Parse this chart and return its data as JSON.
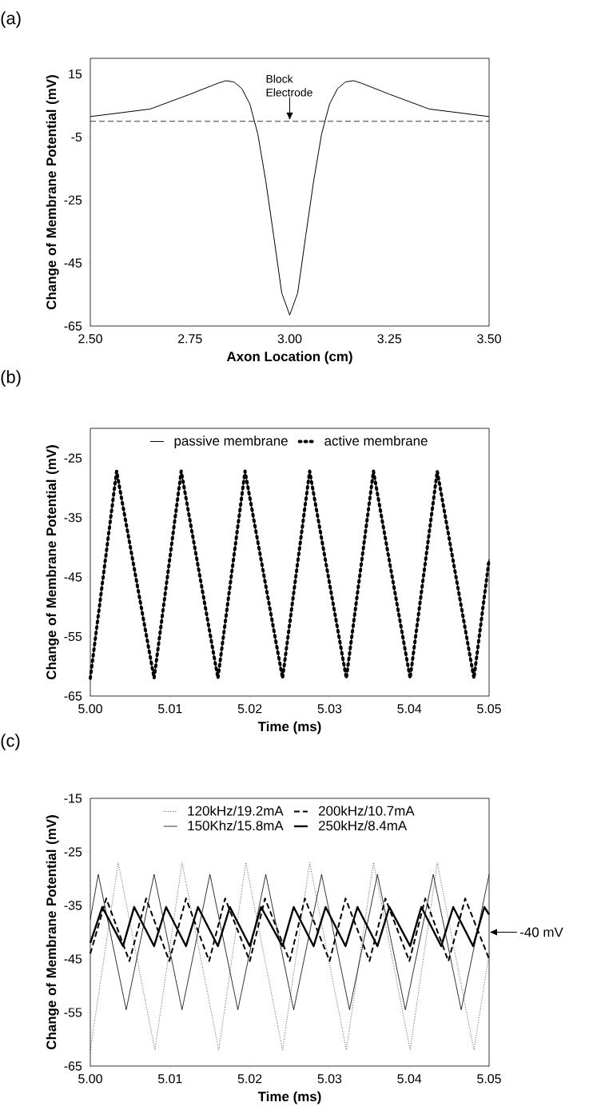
{
  "chart_data": [
    {
      "type": "line",
      "title": "(a)",
      "xlabel": "Axon Location (cm)",
      "ylabel": "Change of Membrane Potential (mV)",
      "xlim": [
        2.5,
        3.5
      ],
      "ylim": [
        -65,
        20
      ],
      "xticks": [
        {
          "value": 2.5,
          "label": "2.50"
        },
        {
          "value": 2.75,
          "label": "2.75"
        },
        {
          "value": 3.0,
          "label": "3.00"
        },
        {
          "value": 3.25,
          "label": "3.25"
        },
        {
          "value": 3.5,
          "label": "3.50"
        }
      ],
      "yticks": [
        -65,
        -45,
        -25,
        -5,
        15
      ],
      "series": [
        {
          "color": "#000000",
          "line_style": "solid",
          "x": [
            2.5,
            2.65,
            2.75,
            2.82,
            2.84,
            2.86,
            2.88,
            2.9,
            2.92,
            2.94,
            2.96,
            2.98,
            3.0,
            3.02,
            3.04,
            3.06,
            3.08,
            3.1,
            3.12,
            3.14,
            3.16,
            3.18,
            3.25,
            3.35,
            3.5
          ],
          "values": [
            1.5,
            3.9,
            8.6,
            12.1,
            12.9,
            12.5,
            10.4,
            5.5,
            -4,
            -19,
            -36.5,
            -54.5,
            -61.5,
            -54.5,
            -36.5,
            -19,
            -4,
            5.5,
            10.4,
            12.5,
            12.9,
            12.1,
            8.6,
            3.9,
            1.5
          ]
        }
      ],
      "ref_lines": [
        {
          "axis": "y",
          "value": 0,
          "line_style": "dashed"
        }
      ],
      "annotations": [
        {
          "text": "Block Electrode",
          "x": 3.0,
          "y": 0
        }
      ]
    },
    {
      "type": "line",
      "title": "(b)",
      "xlabel": "Time (ms)",
      "ylabel": "Change of Membrane Potential (mV)",
      "xlim": [
        5.0,
        5.05
      ],
      "ylim": [
        -65,
        -20
      ],
      "xticks": [
        {
          "value": 5.0,
          "label": "5.00"
        },
        {
          "value": 5.01,
          "label": "5.01"
        },
        {
          "value": 5.02,
          "label": "5.02"
        },
        {
          "value": 5.03,
          "label": "5.03"
        },
        {
          "value": 5.04,
          "label": "5.04"
        },
        {
          "value": 5.05,
          "label": "5.05"
        }
      ],
      "yticks": [
        -65,
        -55,
        -45,
        -35,
        -25
      ],
      "legend": "top",
      "series": [
        {
          "name": "passive membrane",
          "color": "#000000",
          "line_style": "solid",
          "x": [
            5.0,
            5.0033,
            5.008,
            5.0114,
            5.016,
            5.0194,
            5.0241,
            5.0275,
            5.0321,
            5.0355,
            5.0401,
            5.0435,
            5.0481,
            5.05
          ],
          "values": [
            -62,
            -27.2,
            -62,
            -27.2,
            -62,
            -27.2,
            -62,
            -27.2,
            -62,
            -27.2,
            -62,
            -27.2,
            -62,
            -42
          ]
        },
        {
          "name": "active membrane",
          "color": "#000000",
          "line_style": "dotted",
          "x": [
            5.0,
            5.0033,
            5.008,
            5.0114,
            5.016,
            5.0194,
            5.0241,
            5.0275,
            5.0321,
            5.0355,
            5.0401,
            5.0435,
            5.0481,
            5.05
          ],
          "values": [
            -62,
            -27.2,
            -62,
            -27.2,
            -62,
            -27.2,
            -62,
            -27.2,
            -62,
            -27.2,
            -62,
            -27.2,
            -62,
            -42
          ]
        }
      ]
    },
    {
      "type": "line",
      "title": "(c)",
      "xlabel": "Time (ms)",
      "ylabel": "Change of Membrane Potential (mV)",
      "xlim": [
        5.0,
        5.05
      ],
      "ylim": [
        -65,
        -15
      ],
      "xticks": [
        {
          "value": 5.0,
          "label": "5.00"
        },
        {
          "value": 5.01,
          "label": "5.01"
        },
        {
          "value": 5.02,
          "label": "5.02"
        },
        {
          "value": 5.03,
          "label": "5.03"
        },
        {
          "value": 5.04,
          "label": "5.04"
        },
        {
          "value": 5.05,
          "label": "5.05"
        }
      ],
      "yticks": [
        -65,
        -55,
        -45,
        -35,
        -25,
        -15
      ],
      "legend": "top",
      "series": [
        {
          "name": "120kHz/19.2mA",
          "color": "#000000",
          "line_style": "dotted",
          "x": [
            5.0,
            5.0035,
            5.0081,
            5.0115,
            5.0161,
            5.0195,
            5.0241,
            5.0275,
            5.0321,
            5.0355,
            5.0401,
            5.0435,
            5.0481,
            5.05
          ],
          "values": [
            -62,
            -27,
            -62,
            -27,
            -62,
            -27,
            -62,
            -27,
            -62,
            -27,
            -62,
            -27,
            -62,
            -44
          ]
        },
        {
          "name": "150Khz/15.8mA",
          "color": "#000000",
          "line_style": "solid",
          "x": [
            5.0,
            5.001,
            5.0045,
            5.008,
            5.0115,
            5.015,
            5.0185,
            5.022,
            5.0255,
            5.029,
            5.0325,
            5.036,
            5.0395,
            5.043,
            5.0465,
            5.05
          ],
          "values": [
            -37.6,
            -29.2,
            -54.5,
            -29.2,
            -54.5,
            -29.2,
            -54.5,
            -29.2,
            -54.5,
            -29.2,
            -54.5,
            -29.2,
            -54.5,
            -29.2,
            -54.5,
            -29.2
          ]
        },
        {
          "name": "200kHz/10.7mA",
          "color": "#000000",
          "line_style": "dashed",
          "x": [
            5.0,
            5.002,
            5.0049,
            5.007,
            5.0099,
            5.012,
            5.0149,
            5.0169,
            5.02,
            5.0219,
            5.025,
            5.0269,
            5.03,
            5.032,
            5.035,
            5.037,
            5.04,
            5.042,
            5.0449,
            5.047,
            5.05
          ],
          "values": [
            -44,
            -33.7,
            -45.4,
            -33.7,
            -45.4,
            -33.7,
            -45.4,
            -33.7,
            -45.4,
            -33.7,
            -45.4,
            -33.7,
            -45.4,
            -33.7,
            -45.4,
            -33.7,
            -45.4,
            -33.7,
            -45.4,
            -33.7,
            -45
          ]
        },
        {
          "name": "250kHz/8.4mA",
          "color": "#000000",
          "line_style": "solid",
          "x": [
            5.0,
            5.0015,
            5.0041,
            5.0055,
            5.008,
            5.0095,
            5.012,
            5.0135,
            5.016,
            5.0175,
            5.02,
            5.0214,
            5.0241,
            5.0255,
            5.028,
            5.0295,
            5.032,
            5.0335,
            5.036,
            5.0375,
            5.0401,
            5.0415,
            5.044,
            5.0455,
            5.048,
            5.0494,
            5.05
          ],
          "values": [
            -42,
            -35.3,
            -42.6,
            -35.3,
            -42.6,
            -35.3,
            -42.6,
            -35.3,
            -42.6,
            -35.3,
            -42.6,
            -35.3,
            -42.6,
            -35.3,
            -42.6,
            -35.3,
            -42.6,
            -35.3,
            -42.6,
            -35.3,
            -42.6,
            -35.3,
            -42.6,
            -35.3,
            -42.6,
            -35.3,
            -36.7
          ]
        }
      ],
      "annotations": [
        "-40 mV"
      ]
    }
  ]
}
